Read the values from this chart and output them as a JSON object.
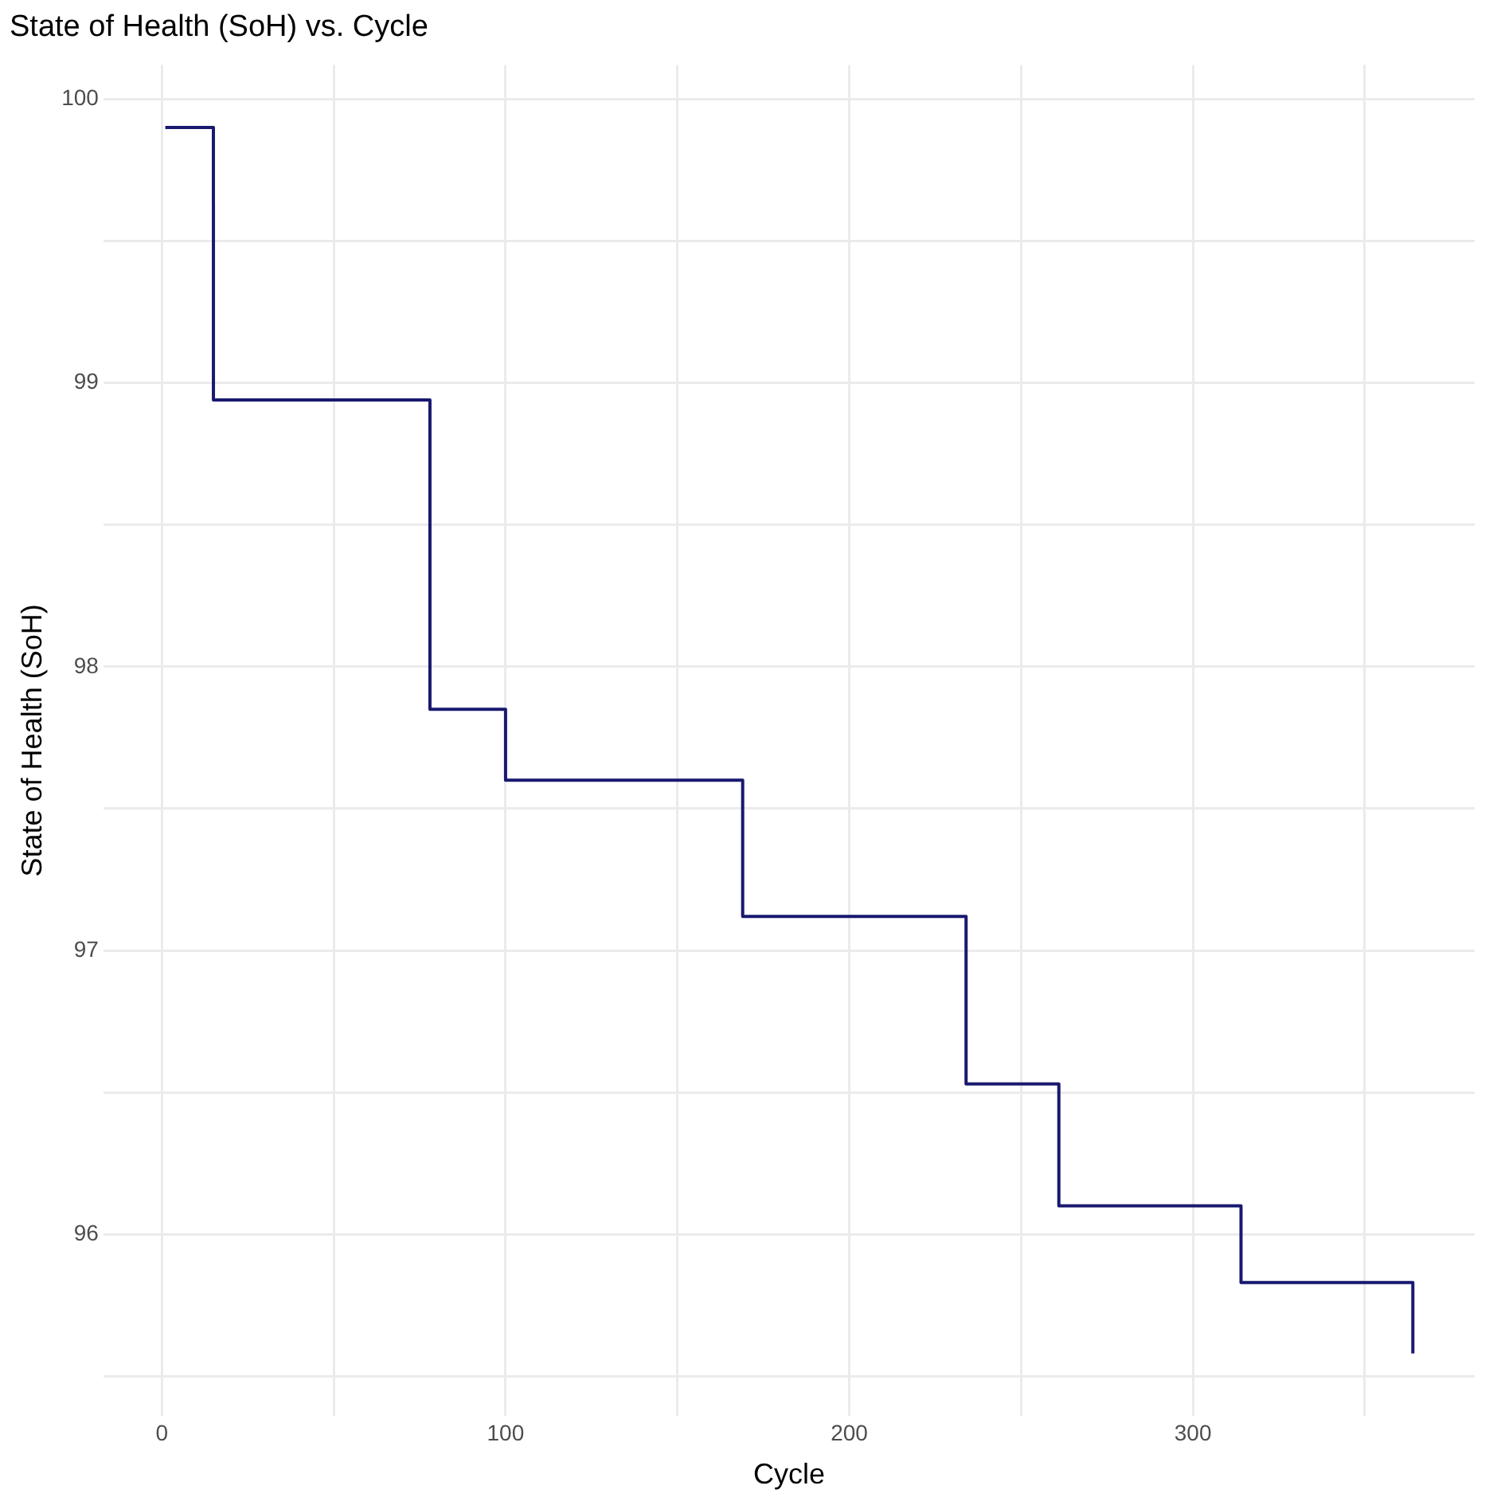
{
  "chart_data": {
    "type": "step",
    "title": "State of Health (SoH) vs. Cycle",
    "xlabel": "Cycle",
    "ylabel": "State of Health (SoH)",
    "x": [
      1,
      15,
      78,
      100,
      169,
      234,
      261,
      314,
      364
    ],
    "series": [
      {
        "color": "#191970",
        "values": [
          99.9,
          98.94,
          97.85,
          97.6,
          97.12,
          96.53,
          96.1,
          95.83,
          95.58
        ]
      }
    ],
    "xlim": [
      -17,
      382
    ],
    "xticks": [
      0,
      {
        "value": 50,
        "label": null
      },
      100,
      {
        "value": 150,
        "label": null
      },
      200,
      {
        "value": 250,
        "label": null
      },
      300,
      {
        "value": 350,
        "label": null
      }
    ],
    "ylim": [
      95.36,
      100.12
    ],
    "yticks": [
      {
        "value": 95.5,
        "label": null
      },
      96,
      {
        "value": 96.5,
        "label": null
      },
      97,
      {
        "value": 97.5,
        "label": null
      },
      98,
      {
        "value": 98.5,
        "label": null
      },
      99,
      {
        "value": 99.5,
        "label": null
      },
      100
    ],
    "grid": true,
    "legend": false,
    "marker": "none",
    "line_style": "solid"
  }
}
